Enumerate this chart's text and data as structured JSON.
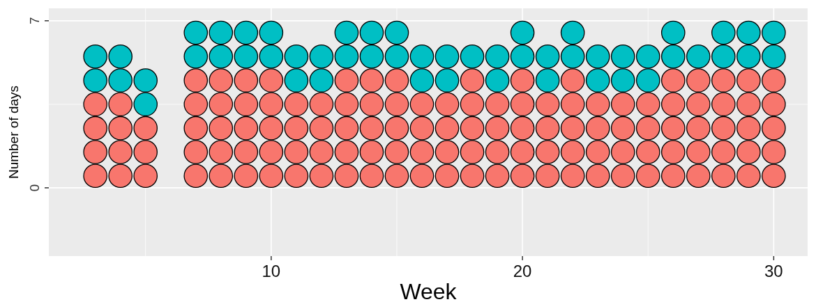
{
  "chart_data": {
    "type": "scatter",
    "marker": "circle",
    "xlabel": "Week",
    "ylabel": "Number of days",
    "series": [
      {
        "color": "#f8766d",
        "x": [
          3,
          3,
          3,
          3,
          4,
          4,
          4,
          4,
          5,
          5,
          5,
          7,
          7,
          7,
          7,
          7,
          8,
          8,
          8,
          8,
          8,
          9,
          9,
          9,
          9,
          9,
          10,
          10,
          10,
          10,
          10,
          11,
          11,
          11,
          11,
          12,
          12,
          12,
          12,
          13,
          13,
          13,
          13,
          13,
          14,
          14,
          14,
          14,
          14,
          15,
          15,
          15,
          15,
          15,
          16,
          16,
          16,
          16,
          17,
          17,
          17,
          17,
          18,
          18,
          18,
          18,
          18,
          19,
          19,
          19,
          19,
          20,
          20,
          20,
          20,
          20,
          21,
          21,
          21,
          21,
          22,
          22,
          22,
          22,
          22,
          23,
          23,
          23,
          23,
          24,
          24,
          24,
          24,
          25,
          25,
          25,
          25,
          26,
          26,
          26,
          26,
          26,
          27,
          27,
          27,
          27,
          27,
          28,
          28,
          28,
          28,
          28,
          29,
          29,
          29,
          29,
          29,
          30,
          30,
          30,
          30,
          30
        ],
        "values": [
          0.5,
          1.5,
          2.5,
          3.5,
          0.5,
          1.5,
          2.5,
          3.5,
          0.5,
          1.5,
          2.5,
          0.5,
          1.5,
          2.5,
          3.5,
          4.5,
          0.5,
          1.5,
          2.5,
          3.5,
          4.5,
          0.5,
          1.5,
          2.5,
          3.5,
          4.5,
          0.5,
          1.5,
          2.5,
          3.5,
          4.5,
          0.5,
          1.5,
          2.5,
          3.5,
          0.5,
          1.5,
          2.5,
          3.5,
          0.5,
          1.5,
          2.5,
          3.5,
          4.5,
          0.5,
          1.5,
          2.5,
          3.5,
          4.5,
          0.5,
          1.5,
          2.5,
          3.5,
          4.5,
          0.5,
          1.5,
          2.5,
          3.5,
          0.5,
          1.5,
          2.5,
          3.5,
          0.5,
          1.5,
          2.5,
          3.5,
          4.5,
          0.5,
          1.5,
          2.5,
          3.5,
          0.5,
          1.5,
          2.5,
          3.5,
          4.5,
          0.5,
          1.5,
          2.5,
          3.5,
          0.5,
          1.5,
          2.5,
          3.5,
          4.5,
          0.5,
          1.5,
          2.5,
          3.5,
          0.5,
          1.5,
          2.5,
          3.5,
          0.5,
          1.5,
          2.5,
          3.5,
          0.5,
          1.5,
          2.5,
          3.5,
          4.5,
          0.5,
          1.5,
          2.5,
          3.5,
          4.5,
          0.5,
          1.5,
          2.5,
          3.5,
          4.5,
          0.5,
          1.5,
          2.5,
          3.5,
          4.5,
          0.5,
          1.5,
          2.5,
          3.5,
          4.5
        ]
      },
      {
        "color": "#00bfc4",
        "x": [
          3,
          3,
          4,
          4,
          5,
          5,
          7,
          7,
          8,
          8,
          9,
          9,
          10,
          10,
          11,
          11,
          12,
          12,
          13,
          13,
          14,
          14,
          15,
          15,
          16,
          16,
          17,
          17,
          18,
          19,
          19,
          20,
          20,
          21,
          21,
          22,
          22,
          23,
          23,
          24,
          24,
          25,
          25,
          26,
          26,
          27,
          28,
          28,
          29,
          29,
          30,
          30
        ],
        "values": [
          4.5,
          5.5,
          4.5,
          5.5,
          3.5,
          4.5,
          5.5,
          6.5,
          5.5,
          6.5,
          5.5,
          6.5,
          5.5,
          6.5,
          4.5,
          5.5,
          4.5,
          5.5,
          5.5,
          6.5,
          5.5,
          6.5,
          5.5,
          6.5,
          4.5,
          5.5,
          4.5,
          5.5,
          5.5,
          4.5,
          5.5,
          5.5,
          6.5,
          4.5,
          5.5,
          5.5,
          6.5,
          4.5,
          5.5,
          4.5,
          5.5,
          4.5,
          5.5,
          5.5,
          6.5,
          5.5,
          5.5,
          6.5,
          5.5,
          6.5,
          5.5,
          6.5
        ]
      }
    ],
    "xlim": [
      1.15,
      31.35
    ],
    "xticks": [
      10,
      20,
      30
    ],
    "ylim": [
      -2.86,
      7.52
    ],
    "yticks": [
      0,
      7
    ],
    "grid": true
  }
}
